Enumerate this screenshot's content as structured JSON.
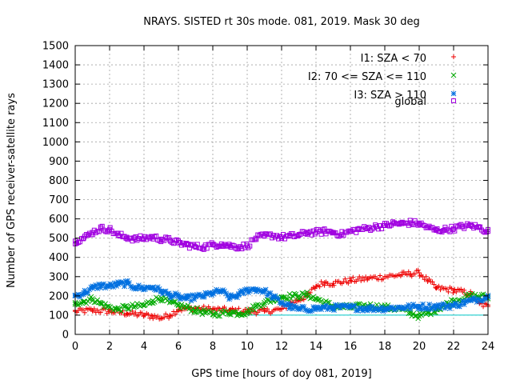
{
  "chart_data": {
    "type": "scatter",
    "title": "NRAYS. SISTED rt 30s mode. 081, 2019. Mask 30 deg",
    "xlabel": "GPS time [hours of doy 081, 2019]",
    "ylabel": "Number of GPS receiver-satellite rays",
    "xlim": [
      0,
      24
    ],
    "ylim": [
      0,
      1500
    ],
    "xticks": [
      0,
      2,
      4,
      6,
      8,
      10,
      12,
      14,
      16,
      18,
      20,
      22,
      24
    ],
    "yticks": [
      0,
      100,
      200,
      300,
      400,
      500,
      600,
      700,
      800,
      900,
      1000,
      1100,
      1200,
      1300,
      1400,
      1500
    ],
    "grid": true,
    "legend_position": "top-right",
    "reference_line": {
      "y": 100,
      "x_from": 10,
      "x_to": 24,
      "color": "#00c8c8"
    },
    "series": [
      {
        "name": "I1: SZA < 70",
        "marker": "plus",
        "color": "#ee0000",
        "x": [
          0,
          1,
          2,
          3,
          4,
          4.5,
          5,
          5.5,
          6,
          7,
          8,
          9,
          10,
          11,
          12,
          12.5,
          13,
          13.5,
          14,
          14.5,
          15,
          16,
          17,
          18,
          19,
          19.5,
          20,
          20.5,
          21,
          22,
          23,
          23.5,
          24
        ],
        "values": [
          120,
          125,
          120,
          110,
          100,
          95,
          85,
          100,
          130,
          135,
          130,
          125,
          120,
          120,
          130,
          160,
          180,
          200,
          250,
          270,
          265,
          280,
          290,
          300,
          310,
          315,
          320,
          280,
          240,
          230,
          210,
          160,
          145
        ]
      },
      {
        "name": "I2: 70 <= SZA <= 110",
        "marker": "cross",
        "color": "#00aa00",
        "x": [
          0,
          0.5,
          1,
          1.5,
          2,
          2.5,
          3,
          4,
          4.5,
          5,
          5.5,
          6,
          6.5,
          7,
          7.5,
          8,
          9,
          9.5,
          10,
          10.5,
          11,
          11.5,
          12,
          13,
          13.5,
          14,
          15,
          16,
          17,
          18,
          19,
          19.5,
          20,
          20.5,
          21,
          22,
          23,
          24
        ],
        "values": [
          165,
          170,
          185,
          160,
          140,
          130,
          140,
          150,
          175,
          190,
          165,
          150,
          140,
          125,
          115,
          105,
          115,
          110,
          115,
          145,
          165,
          180,
          195,
          200,
          205,
          185,
          145,
          140,
          150,
          140,
          130,
          110,
          95,
          110,
          130,
          175,
          200,
          195
        ]
      },
      {
        "name": "I3: SZA > 110",
        "marker": "star",
        "color": "#0070e0",
        "x": [
          0,
          0.5,
          1,
          1.5,
          2,
          2.5,
          3,
          3.5,
          4,
          4.5,
          5,
          5.5,
          6,
          6.5,
          7,
          7.5,
          8,
          8.5,
          9,
          9.5,
          10,
          10.5,
          11,
          11.5,
          12,
          12.5,
          13,
          14,
          15,
          16,
          17,
          18,
          19,
          20,
          21,
          22,
          23,
          24
        ],
        "values": [
          200,
          215,
          240,
          255,
          250,
          260,
          265,
          245,
          240,
          245,
          225,
          205,
          195,
          185,
          195,
          200,
          215,
          225,
          190,
          205,
          230,
          235,
          225,
          195,
          165,
          145,
          130,
          135,
          140,
          140,
          135,
          135,
          140,
          145,
          145,
          150,
          175,
          195
        ]
      },
      {
        "name": "global",
        "marker": "square",
        "color": "#a000e0",
        "x": [
          0,
          0.5,
          1,
          1.5,
          2,
          2.5,
          3,
          3.5,
          4,
          4.5,
          5,
          5.5,
          6,
          6.5,
          7,
          7.5,
          8,
          8.5,
          9,
          9.5,
          10,
          10.5,
          11,
          11.5,
          12,
          12.5,
          13,
          13.5,
          14,
          14.5,
          15,
          15.5,
          16,
          16.5,
          17,
          17.5,
          18,
          18.5,
          19,
          19.5,
          20,
          20.5,
          21,
          21.5,
          22,
          22.5,
          23,
          23.5,
          24
        ],
        "values": [
          485,
          500,
          530,
          550,
          545,
          515,
          505,
          495,
          500,
          505,
          495,
          490,
          475,
          465,
          455,
          455,
          465,
          470,
          460,
          455,
          460,
          500,
          510,
          515,
          505,
          510,
          515,
          530,
          530,
          535,
          530,
          520,
          535,
          545,
          550,
          560,
          565,
          575,
          575,
          580,
          575,
          555,
          540,
          545,
          550,
          560,
          565,
          555,
          535
        ]
      }
    ]
  }
}
